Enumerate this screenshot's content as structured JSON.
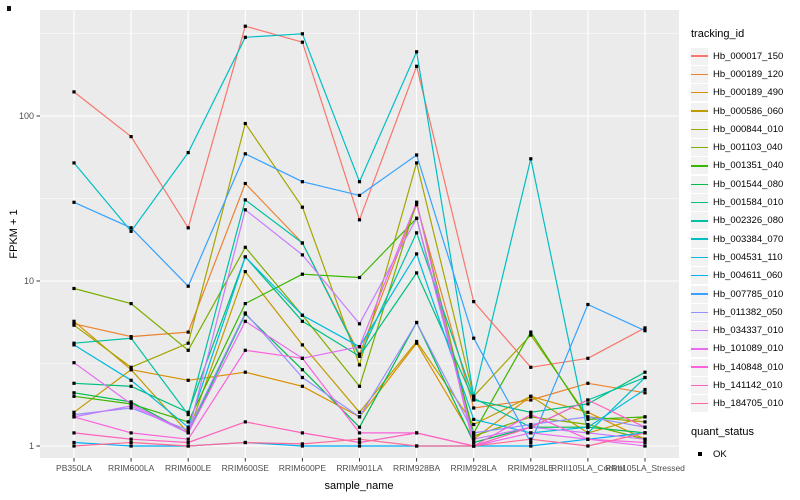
{
  "chart_data": {
    "type": "line",
    "title": "",
    "xlabel": "sample_name",
    "ylabel": "FPKM + 1",
    "y_scale": "log10",
    "y_ticks": [
      1,
      10,
      100
    ],
    "y_tick_labels": [
      "1",
      "10",
      "100"
    ],
    "ylim": [
      0.85,
      450
    ],
    "grid": "on",
    "panel_background": "#EBEBEB",
    "gridline_color": "#FFFFFF",
    "point_marker": "filled-square",
    "point_color": "#000000",
    "tick_color": "#333333",
    "tick_label_color": "#4D4D4D",
    "categories": [
      "PB350LA",
      "RRIM600LA",
      "RRIM600LE",
      "RRIM600SE",
      "RRIM600PE",
      "RRIM901LA",
      "RRIM928BA",
      "RRIM928LA",
      "RRIM928LE",
      "RRII105LA_Control",
      "RRII105LA_Stressed"
    ],
    "legend": {
      "position": "right",
      "color_title": "tracking_id",
      "shape_title": "quant_status",
      "shape_entries": [
        {
          "label": "OK",
          "marker": "black-square"
        }
      ]
    },
    "series": [
      {
        "name": "Hb_000017_150",
        "color": "#F8766D",
        "values": [
          140,
          75,
          21,
          350,
          280,
          23.5,
          200,
          7.5,
          3.0,
          3.4,
          5.2
        ]
      },
      {
        "name": "Hb_000189_120",
        "color": "#EA8331",
        "values": [
          5.5,
          4.6,
          4.9,
          39,
          17,
          3.6,
          29,
          1.7,
          1.9,
          2.4,
          2.1
        ]
      },
      {
        "name": "Hb_000189_490",
        "color": "#D89000",
        "values": [
          5.7,
          2.9,
          2.5,
          2.8,
          2.3,
          1.5,
          4.2,
          1.1,
          2.0,
          1.6,
          1.1
        ]
      },
      {
        "name": "Hb_000586_060",
        "color": "#C09B00",
        "values": [
          1.6,
          2.9,
          1.2,
          11.4,
          4.1,
          1.6,
          4.3,
          1.35,
          2.0,
          1.2,
          1.5
        ]
      },
      {
        "name": "Hb_000844_010",
        "color": "#A3A500",
        "values": [
          5.4,
          3.0,
          4.2,
          90,
          28,
          3.1,
          52,
          2.0,
          4.7,
          1.5,
          1.4
        ]
      },
      {
        "name": "Hb_001103_040",
        "color": "#7CAE00",
        "values": [
          9,
          7.3,
          3.8,
          16,
          6.2,
          2.3,
          30,
          1.15,
          1.5,
          1.35,
          1.1
        ]
      },
      {
        "name": "Hb_001351_040",
        "color": "#39B600",
        "values": [
          2.0,
          1.8,
          1.4,
          7.3,
          11,
          10.5,
          24,
          1.2,
          4.9,
          1.45,
          1.5
        ]
      },
      {
        "name": "Hb_001544_080",
        "color": "#00BB4E",
        "values": [
          2.1,
          1.85,
          1.2,
          6.3,
          2.9,
          1.3,
          5.6,
          1.05,
          1.3,
          1.3,
          1.2
        ]
      },
      {
        "name": "Hb_001584_010",
        "color": "#00BF7D",
        "values": [
          2.4,
          2.3,
          1.6,
          14,
          5.7,
          3.5,
          11.2,
          1.9,
          1.6,
          1.8,
          2.8
        ]
      },
      {
        "name": "Hb_002326_080",
        "color": "#00C1A3",
        "values": [
          4.2,
          4.5,
          1.55,
          31,
          17,
          3.5,
          19.6,
          1.95,
          1.3,
          1.9,
          2.6
        ]
      },
      {
        "name": "Hb_003384_070",
        "color": "#00BFC4",
        "values": [
          52,
          20,
          60,
          300,
          315,
          40,
          245,
          2.0,
          55,
          1.2,
          2.6
        ]
      },
      {
        "name": "Hb_004531_110",
        "color": "#00BAE0",
        "values": [
          4.1,
          2.5,
          1.3,
          14,
          6.2,
          4.0,
          14.6,
          1.45,
          1.2,
          1.3,
          2.2
        ]
      },
      {
        "name": "Hb_004611_060",
        "color": "#00B0F6",
        "values": [
          1.05,
          1.0,
          1.0,
          1.05,
          1.0,
          1.0,
          1.0,
          1.0,
          1.0,
          1.1,
          1.2
        ]
      },
      {
        "name": "Hb_007785_010",
        "color": "#35A2FF",
        "values": [
          30,
          21,
          9.3,
          59,
          40,
          33,
          58,
          4.5,
          1.05,
          7.2,
          5.0
        ]
      },
      {
        "name": "Hb_011382_050",
        "color": "#9590FF",
        "values": [
          1.55,
          1.7,
          1.25,
          6.4,
          2.6,
          1.5,
          5.6,
          1.2,
          1.35,
          1.5,
          1.3
        ]
      },
      {
        "name": "Hb_034337_010",
        "color": "#C77CFF",
        "values": [
          1.5,
          1.75,
          1.2,
          27,
          14.4,
          5.5,
          24,
          1.1,
          1.3,
          1.2,
          1.1
        ]
      },
      {
        "name": "Hb_101089_010",
        "color": "#E76BF3",
        "values": [
          3.2,
          1.8,
          1.2,
          5.7,
          3.4,
          4.0,
          30,
          1.0,
          1.2,
          1.1,
          1.0
        ]
      },
      {
        "name": "Hb_140848_010",
        "color": "#FA62DB",
        "values": [
          1.5,
          1.2,
          1.1,
          3.8,
          3.4,
          1.2,
          1.2,
          1.0,
          1.55,
          1.1,
          1.05
        ]
      },
      {
        "name": "Hb_141142_010",
        "color": "#FF62BC",
        "values": [
          1.2,
          1.1,
          1.05,
          1.4,
          1.2,
          1.05,
          1.2,
          1.0,
          1.3,
          1.9,
          1.3
        ]
      },
      {
        "name": "Hb_184705_010",
        "color": "#FF6A98",
        "values": [
          1.0,
          1.05,
          1.0,
          1.05,
          1.03,
          1.1,
          1.0,
          1.0,
          1.1,
          1.0,
          1.2
        ]
      }
    ]
  }
}
